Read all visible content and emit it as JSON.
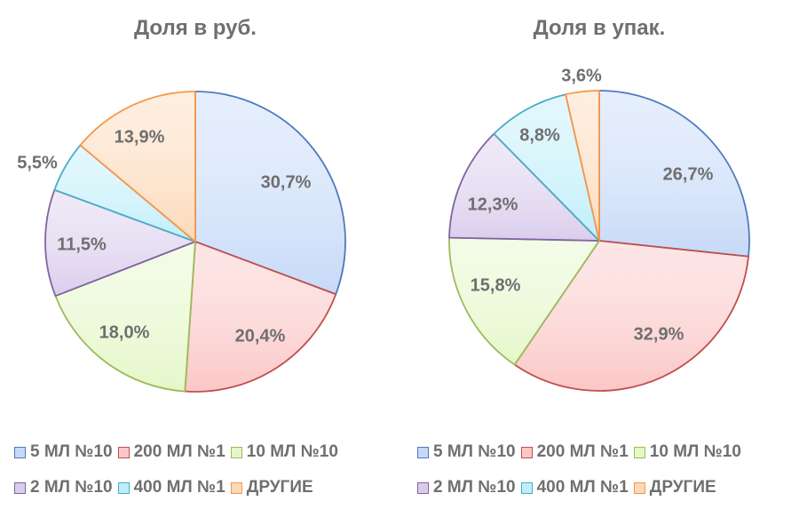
{
  "chart_data": [
    {
      "type": "pie",
      "title": "Доля в руб.",
      "categories": [
        "5 МЛ №10",
        "200 МЛ №1",
        "10 МЛ №10",
        "2 МЛ №10",
        "400 МЛ №1",
        "ДРУГИЕ"
      ],
      "values": [
        30.7,
        20.4,
        18.0,
        11.5,
        5.5,
        13.9
      ],
      "labels": [
        "30,7%",
        "20,4%",
        "18,0%",
        "11,5%",
        "5,5%",
        "13,9%"
      ],
      "legend_position": "bottom"
    },
    {
      "type": "pie",
      "title": "Доля в упак.",
      "categories": [
        "5 МЛ №10",
        "200 МЛ №1",
        "10 МЛ №10",
        "2 МЛ №10",
        "400 МЛ №1",
        "ДРУГИЕ"
      ],
      "values": [
        26.7,
        32.9,
        15.8,
        12.3,
        8.8,
        3.6
      ],
      "labels": [
        "26,7%",
        "32,9%",
        "15,8%",
        "12,3%",
        "8,8%",
        "3,6%"
      ],
      "legend_position": "bottom"
    }
  ],
  "colors": {
    "fills": [
      "#c6d9f8",
      "#fbc6c6",
      "#e4f7c8",
      "#dacdec",
      "#bfeefa",
      "#fcd9b8"
    ],
    "strokes": [
      "#4f7bc0",
      "#c0504d",
      "#9bbb59",
      "#8064a2",
      "#4bacc6",
      "#f79646"
    ],
    "text": "#6f6f6f"
  }
}
